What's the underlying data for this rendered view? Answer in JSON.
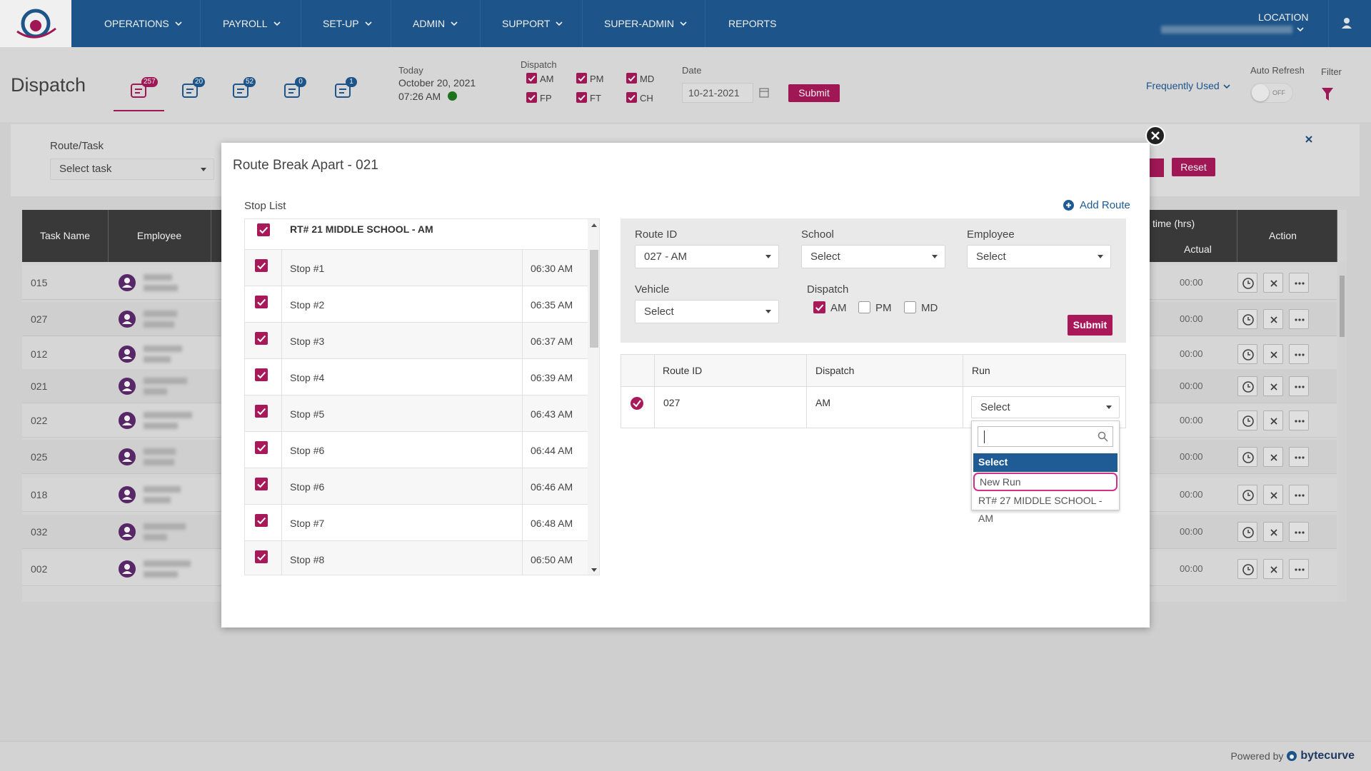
{
  "nav": {
    "items": [
      "OPERATIONS",
      "PAYROLL",
      "SET-UP",
      "ADMIN",
      "SUPPORT",
      "SUPER-ADMIN",
      "REPORTS"
    ],
    "location": "LOCATION"
  },
  "page": {
    "title": "Dispatch",
    "tab_badges": [
      257,
      20,
      52,
      0,
      1
    ],
    "today": {
      "label": "Today",
      "date": "October 20, 2021",
      "time": "07:26 AM"
    },
    "dispatch": {
      "label": "Dispatch",
      "options": [
        {
          "label": "AM",
          "checked": true
        },
        {
          "label": "PM",
          "checked": true
        },
        {
          "label": "MD",
          "checked": true
        },
        {
          "label": "FP",
          "checked": true
        },
        {
          "label": "FT",
          "checked": true
        },
        {
          "label": "CH",
          "checked": true
        }
      ]
    },
    "date": {
      "label": "Date",
      "value": "10-21-2021"
    },
    "submit": "Submit",
    "frequently_used": "Frequently Used",
    "auto_refresh": {
      "label": "Auto Refresh",
      "state": "OFF"
    },
    "filter": "Filter"
  },
  "filters": {
    "route_task_label": "Route/Task",
    "route_task_placeholder": "Select task",
    "reset": "Reset"
  },
  "table": {
    "headers": {
      "task_name": "Task Name",
      "employee": "Employee",
      "time": "time (hrs)",
      "actual": "Actual",
      "action": "Action"
    },
    "rows": [
      {
        "task": "015",
        "actual": "00:00"
      },
      {
        "task": "027",
        "actual": "00:00"
      },
      {
        "task": "012",
        "actual": "00:00"
      },
      {
        "task": "021",
        "actual": "00:00"
      },
      {
        "task": "022",
        "actual": "00:00"
      },
      {
        "task": "025",
        "actual": "00:00"
      },
      {
        "task": "018",
        "actual": "00:00"
      },
      {
        "task": "032",
        "actual": "00:00"
      },
      {
        "task": "002",
        "actual": "00:00"
      }
    ]
  },
  "modal": {
    "title": "Route Break Apart - 021",
    "stop_list_label": "Stop List",
    "add_route": "Add Route",
    "route_header": "RT# 21 MIDDLE SCHOOL - AM",
    "stops": [
      {
        "name": "Stop #1",
        "time": "06:30 AM"
      },
      {
        "name": "Stop #2",
        "time": "06:35 AM"
      },
      {
        "name": "Stop #3",
        "time": "06:37 AM"
      },
      {
        "name": "Stop #4",
        "time": "06:39 AM"
      },
      {
        "name": "Stop #5",
        "time": "06:43 AM"
      },
      {
        "name": "Stop #6",
        "time": "06:44 AM"
      },
      {
        "name": "Stop #6",
        "time": "06:46 AM"
      },
      {
        "name": "Stop #7",
        "time": "06:48 AM"
      },
      {
        "name": "Stop #8",
        "time": "06:50 AM"
      }
    ],
    "form": {
      "route_id_label": "Route ID",
      "route_id_value": "027 - AM",
      "school_label": "School",
      "school_value": "Select",
      "employee_label": "Employee",
      "employee_value": "Select",
      "vehicle_label": "Vehicle",
      "vehicle_value": "Select",
      "dispatch_label": "Dispatch",
      "dispatch_options": [
        {
          "label": "AM",
          "checked": true
        },
        {
          "label": "PM",
          "checked": false
        },
        {
          "label": "MD",
          "checked": false
        }
      ],
      "submit": "Submit"
    },
    "result": {
      "headers": {
        "route_id": "Route ID",
        "dispatch": "Dispatch",
        "run": "Run"
      },
      "row": {
        "route_id": "027",
        "dispatch": "AM",
        "run": "Select"
      },
      "dropdown": [
        "Select",
        "New Run",
        "RT# 27 MIDDLE SCHOOL - AM"
      ]
    }
  },
  "footer": {
    "powered_by": "Powered by",
    "brand": "bytecurve"
  }
}
